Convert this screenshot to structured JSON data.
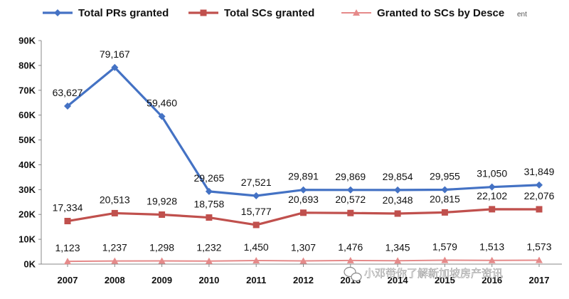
{
  "chart_data": {
    "type": "line",
    "x": [
      "2007",
      "2008",
      "2009",
      "2010",
      "2011",
      "2012",
      "2013",
      "2014",
      "2015",
      "2016",
      "2017"
    ],
    "series": [
      {
        "name": "Total PRs granted",
        "color": "#4472c4",
        "marker": "diamond",
        "values": [
          63627,
          79167,
          59460,
          29265,
          27521,
          29891,
          29869,
          29854,
          29955,
          31050,
          31849
        ],
        "labels": [
          "63,627",
          "79,167",
          "59,460",
          "29,265",
          "27,521",
          "29,891",
          "29,869",
          "29,854",
          "29,955",
          "31,050",
          "31,849"
        ]
      },
      {
        "name": "Total SCs granted",
        "color": "#c0504d",
        "marker": "square",
        "values": [
          17334,
          20513,
          19928,
          18758,
          15777,
          20693,
          20572,
          20348,
          20815,
          22102,
          22076
        ],
        "labels": [
          "17,334",
          "20,513",
          "19,928",
          "18,758",
          "15,777",
          "20,693",
          "20,572",
          "20,348",
          "20,815",
          "22,102",
          "22,076"
        ]
      },
      {
        "name": "Granted to SCs by Desce",
        "color": "#e58a8a",
        "marker": "triangle",
        "values": [
          1123,
          1237,
          1298,
          1232,
          1450,
          1307,
          1476,
          1345,
          1579,
          1513,
          1573
        ],
        "labels": [
          "1,123",
          "1,237",
          "1,298",
          "1,232",
          "1,450",
          "1,307",
          "1,476",
          "1,345",
          "1,579",
          "1,513",
          "1,573"
        ]
      }
    ],
    "yticks": [
      0,
      10000,
      20000,
      30000,
      40000,
      50000,
      60000,
      70000,
      80000,
      90000
    ],
    "ytick_labels": [
      "0K",
      "10K",
      "20K",
      "30K",
      "40K",
      "50K",
      "60K",
      "70K",
      "80K",
      "90K"
    ],
    "ylim": [
      0,
      90000
    ],
    "legend_position": "top",
    "grid": false
  },
  "legend_extra": "ent",
  "watermark": {
    "text": "小邓带你了解新加坡房产资讯",
    "icon": "wechat-icon"
  }
}
